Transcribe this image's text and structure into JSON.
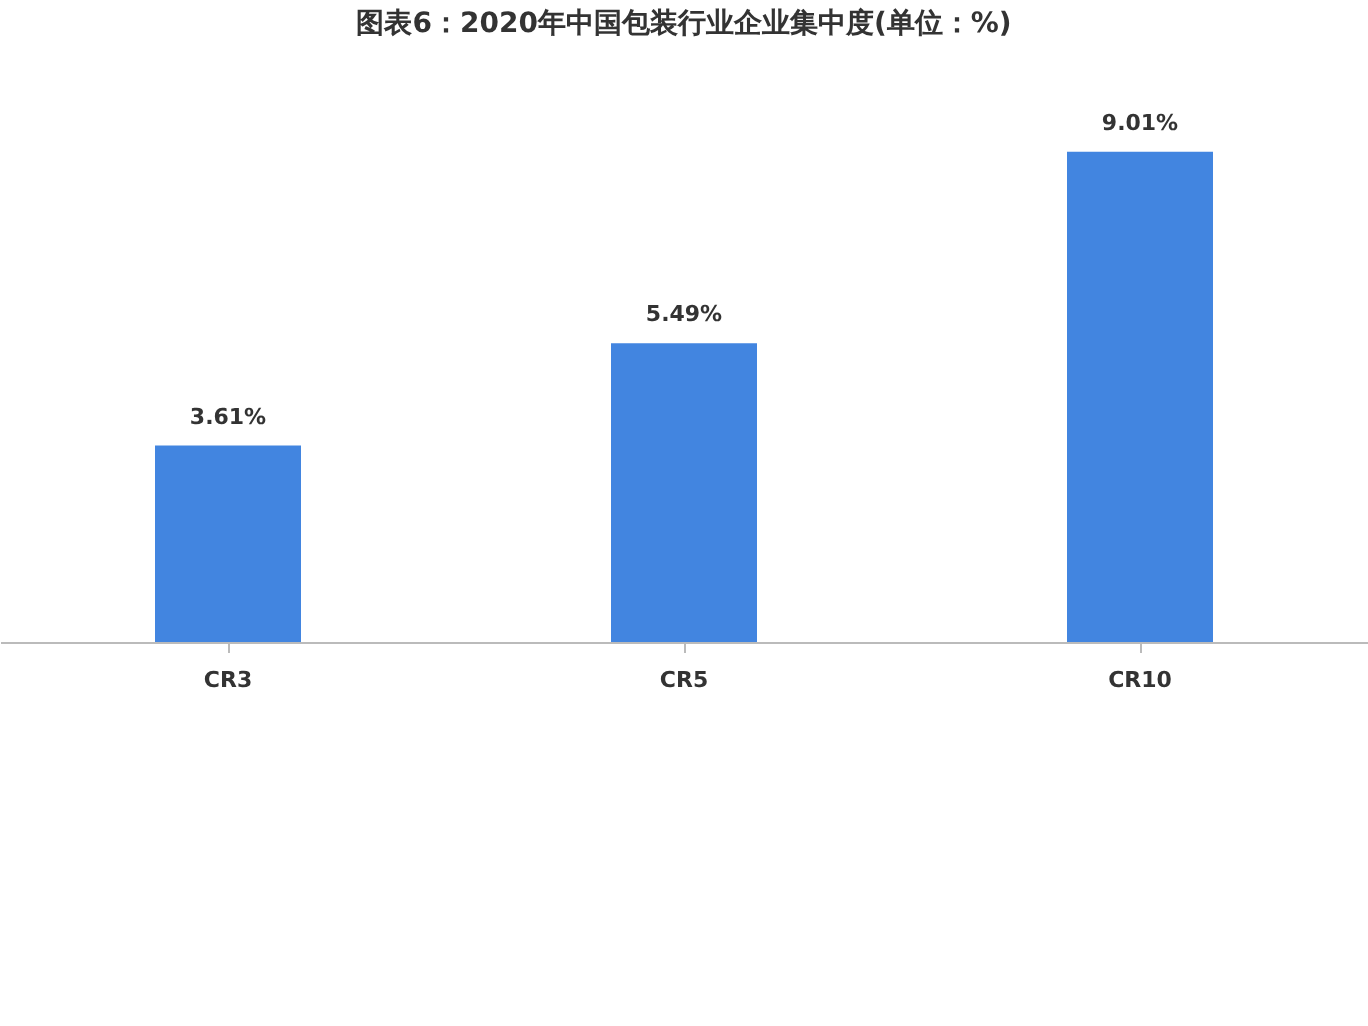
{
  "chart_data": {
    "type": "bar",
    "title": "图表6：2020年中国包装行业企业集中度(单位：%)",
    "categories": [
      "CR3",
      "CR5",
      "CR10"
    ],
    "values": [
      3.61,
      5.49,
      9.01
    ],
    "value_labels": [
      "3.61%",
      "5.49%",
      "9.01%"
    ],
    "color": "#4285e0"
  }
}
